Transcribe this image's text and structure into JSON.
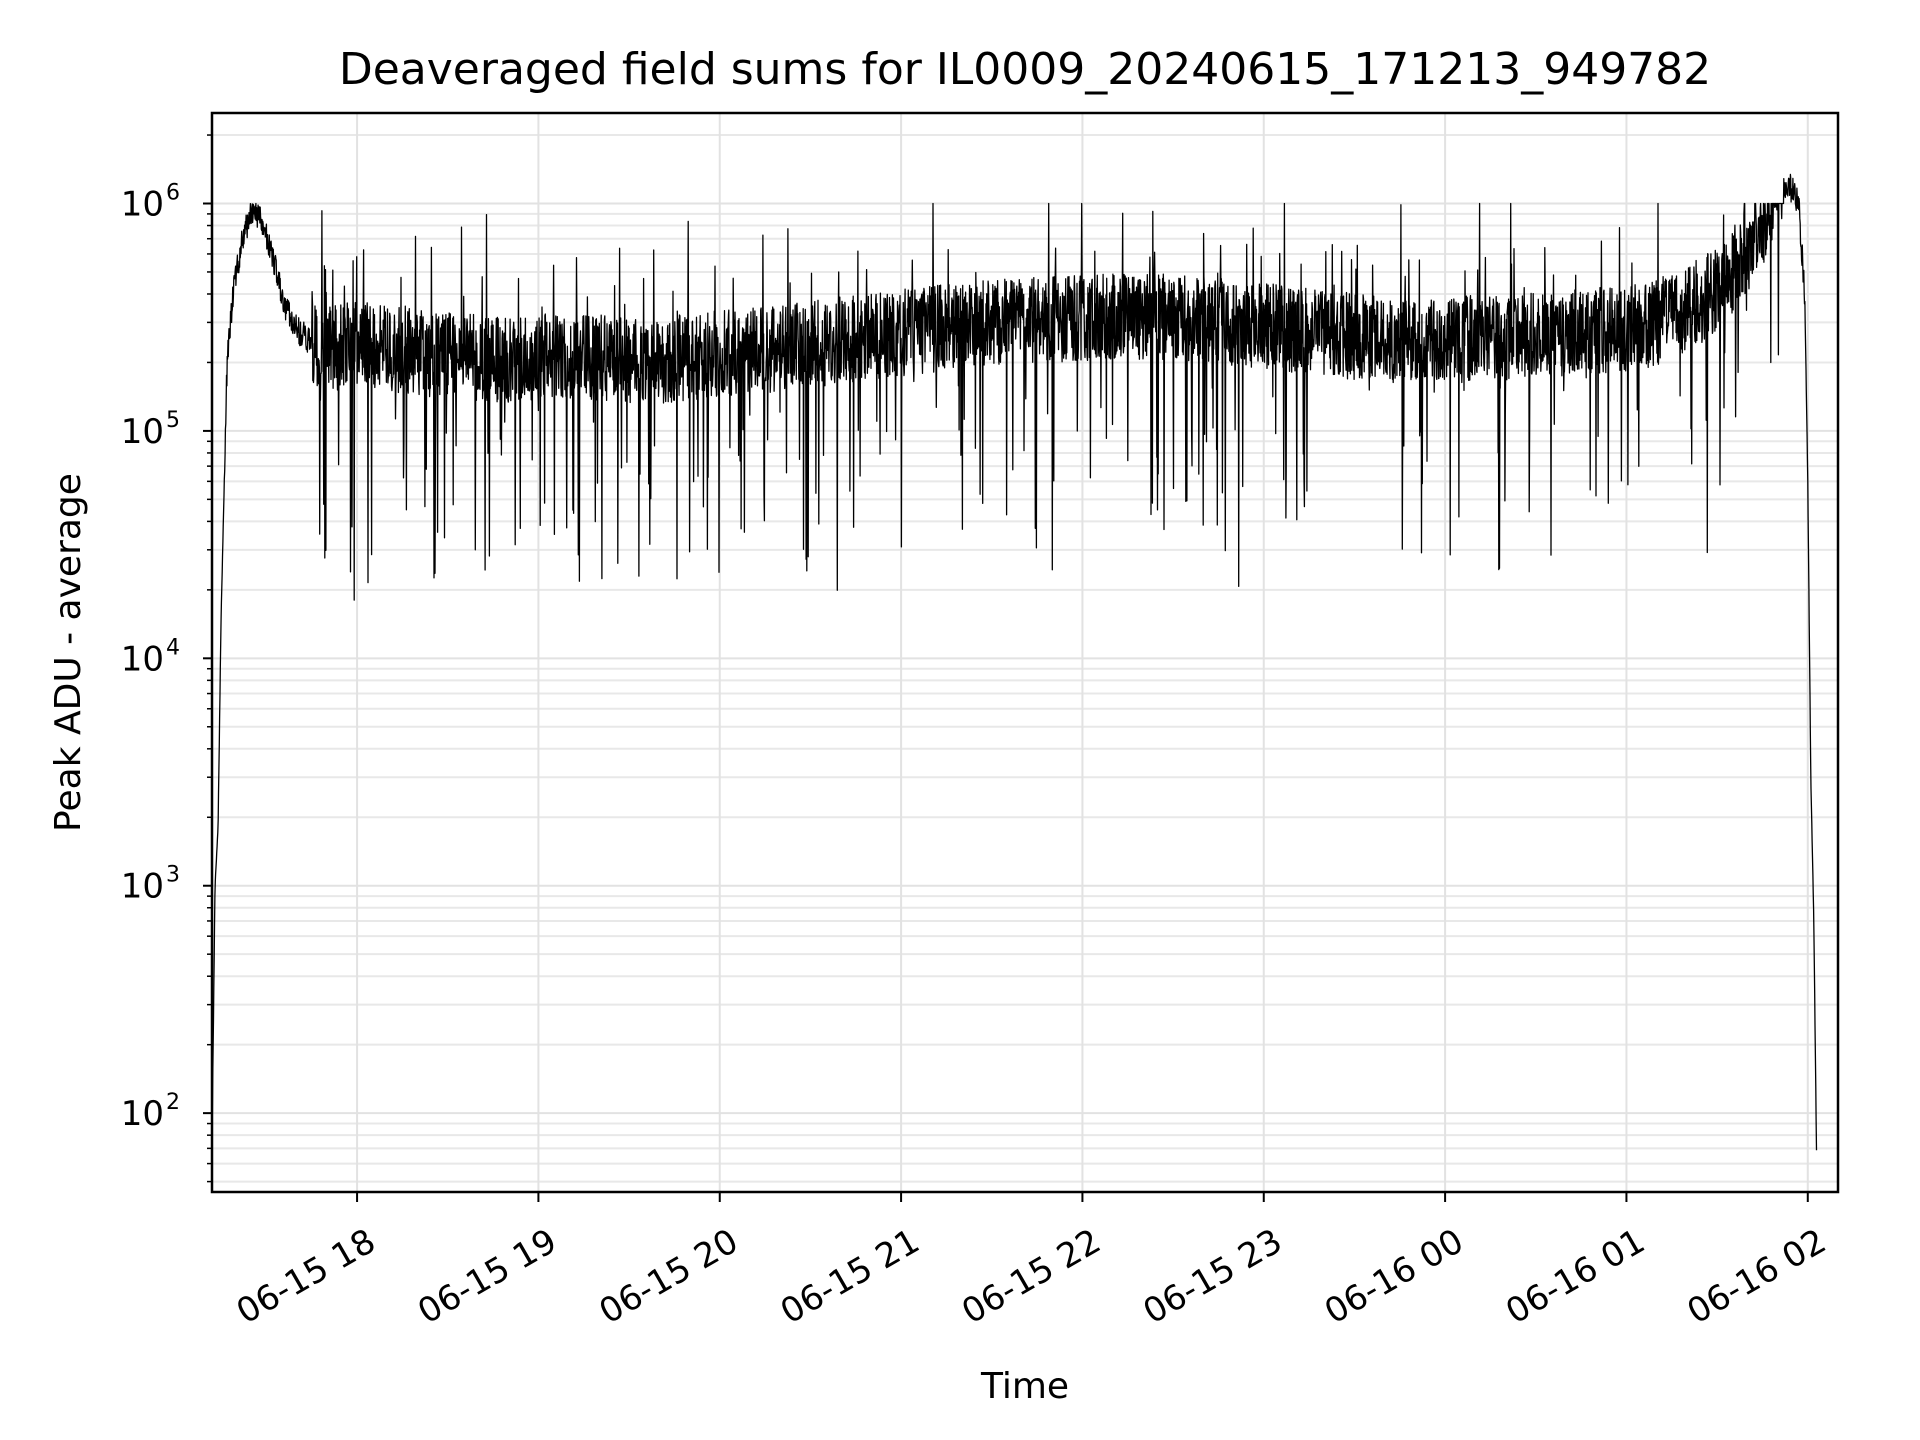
{
  "chart_data": {
    "type": "line",
    "title": "Deaveraged field sums for IL0009_20240615_171213_949782",
    "xlabel": "Time",
    "ylabel": "Peak ADU - average",
    "x_type": "datetime",
    "xlim": [
      "2024-06-15 17:12",
      "2024-06-16 02:10"
    ],
    "ylim": [
      45,
      2500000
    ],
    "yscale": "log",
    "grid": true,
    "legend": "none",
    "x_ticks": [
      {
        "value": "2024-06-15 18:00",
        "label": "06-15 18"
      },
      {
        "value": "2024-06-15 19:00",
        "label": "06-15 19"
      },
      {
        "value": "2024-06-15 20:00",
        "label": "06-15 20"
      },
      {
        "value": "2024-06-15 21:00",
        "label": "06-15 21"
      },
      {
        "value": "2024-06-15 22:00",
        "label": "06-15 22"
      },
      {
        "value": "2024-06-15 23:00",
        "label": "06-15 23"
      },
      {
        "value": "2024-06-16 00:00",
        "label": "06-16 00"
      },
      {
        "value": "2024-06-16 01:00",
        "label": "06-16 01"
      },
      {
        "value": "2024-06-16 02:00",
        "label": "06-16 02"
      }
    ],
    "y_ticks": [
      {
        "value": 100,
        "base": "10",
        "exp": "2"
      },
      {
        "value": 1000,
        "base": "10",
        "exp": "3"
      },
      {
        "value": 10000,
        "base": "10",
        "exp": "4"
      },
      {
        "value": 100000,
        "base": "10",
        "exp": "5"
      },
      {
        "value": 1000000,
        "base": "10",
        "exp": "6"
      }
    ],
    "series": [
      {
        "color": "#000000",
        "x": [
          "2024-06-15 17:12",
          "2024-06-15 17:13",
          "2024-06-15 17:14",
          "2024-06-15 17:15",
          "2024-06-15 17:17",
          "2024-06-15 17:19",
          "2024-06-15 17:22",
          "2024-06-15 17:25",
          "2024-06-15 17:28",
          "2024-06-15 17:32",
          "2024-06-15 17:36",
          "2024-06-15 17:40",
          "2024-06-15 17:44",
          "2024-06-15 17:48",
          "2024-06-15 17:52",
          "2024-06-15 17:56",
          "2024-06-15 18:00",
          "2024-06-15 18:10",
          "2024-06-15 18:20",
          "2024-06-15 18:30",
          "2024-06-15 18:40",
          "2024-06-15 18:50",
          "2024-06-15 19:00",
          "2024-06-15 19:10",
          "2024-06-15 19:20",
          "2024-06-15 19:30",
          "2024-06-15 19:40",
          "2024-06-15 19:50",
          "2024-06-15 20:00",
          "2024-06-15 20:10",
          "2024-06-15 20:20",
          "2024-06-15 20:30",
          "2024-06-15 20:40",
          "2024-06-15 20:50",
          "2024-06-15 21:00",
          "2024-06-15 21:10",
          "2024-06-15 21:20",
          "2024-06-15 21:30",
          "2024-06-15 21:40",
          "2024-06-15 21:50",
          "2024-06-15 22:00",
          "2024-06-15 22:10",
          "2024-06-15 22:20",
          "2024-06-15 22:30",
          "2024-06-15 22:40",
          "2024-06-15 22:50",
          "2024-06-15 23:00",
          "2024-06-15 23:10",
          "2024-06-15 23:20",
          "2024-06-15 23:30",
          "2024-06-15 23:40",
          "2024-06-15 23:50",
          "2024-06-16 00:00",
          "2024-06-16 00:10",
          "2024-06-16 00:20",
          "2024-06-16 00:30",
          "2024-06-16 00:40",
          "2024-06-16 00:50",
          "2024-06-16 01:00",
          "2024-06-16 01:10",
          "2024-06-16 01:20",
          "2024-06-16 01:30",
          "2024-06-16 01:40",
          "2024-06-16 01:45",
          "2024-06-16 01:50",
          "2024-06-16 01:54",
          "2024-06-16 01:57",
          "2024-06-16 01:59",
          "2024-06-16 02:00",
          "2024-06-16 02:01",
          "2024-06-16 02:02",
          "2024-06-16 02:03"
        ],
        "y": [
          75,
          1000,
          1800,
          15000,
          200000,
          400000,
          700000,
          900000,
          850000,
          600000,
          350000,
          280000,
          250000,
          240000,
          230000,
          235000,
          240000,
          230000,
          220000,
          215000,
          210000,
          205000,
          210000,
          215000,
          210000,
          205000,
          200000,
          210000,
          220000,
          225000,
          230000,
          240000,
          250000,
          260000,
          270000,
          280000,
          290000,
          300000,
          305000,
          310000,
          315000,
          320000,
          320000,
          315000,
          310000,
          300000,
          290000,
          280000,
          270000,
          260000,
          250000,
          245000,
          250000,
          255000,
          260000,
          265000,
          270000,
          275000,
          280000,
          300000,
          340000,
          420000,
          620000,
          850000,
          1100000,
          1200000,
          1000000,
          400000,
          60000,
          3000,
          700,
          50
        ],
        "noise_band": {
          "from": "2024-06-15 17:45",
          "to": "2024-06-16 01:52",
          "low_dips_min": 15000,
          "high_peaks_max": 1000000
        }
      }
    ]
  }
}
